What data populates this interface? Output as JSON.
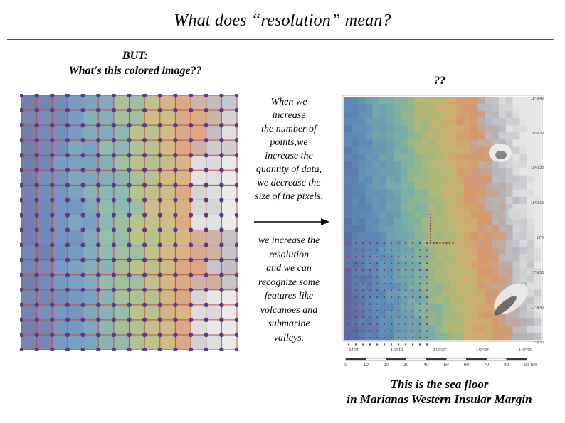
{
  "slide": {
    "title": "What does “resolution” mean?",
    "but_label": "BUT:",
    "question": "What's this colored image??",
    "question_marks": "??",
    "explanation_part1": [
      "When we",
      "increase",
      "the number of",
      "points,we",
      "increase the",
      "quantity of data,",
      "we decrease the",
      "size of the pixels,"
    ],
    "explanation_part2": [
      "we increase the",
      "resolution",
      "and we can",
      "recognize some",
      "features like",
      "volcanoes and",
      "submarine",
      "valleys."
    ],
    "caption_line1": "This is the sea floor",
    "caption_line2": "in Marianas Western Insular Margin"
  },
  "map": {
    "lat_labels": [
      "18°N 40'",
      "18°N 30'",
      "18°N 20'",
      "18°N 10'",
      "18°N",
      "17°N 50'",
      "17°N 40'",
      "17°N 30'"
    ],
    "lon_labels": [
      "142°E",
      "142°10'",
      "142°20'",
      "142°30'",
      "142°40'"
    ],
    "scale_labels": [
      "0",
      "10",
      "20",
      "30",
      "40",
      "50",
      "60",
      "70",
      "80",
      "90"
    ],
    "scale_unit": "km"
  },
  "colors": {
    "grid_line": "#c0504d",
    "grid_point": "#5b3a8a",
    "text": "#000000"
  }
}
